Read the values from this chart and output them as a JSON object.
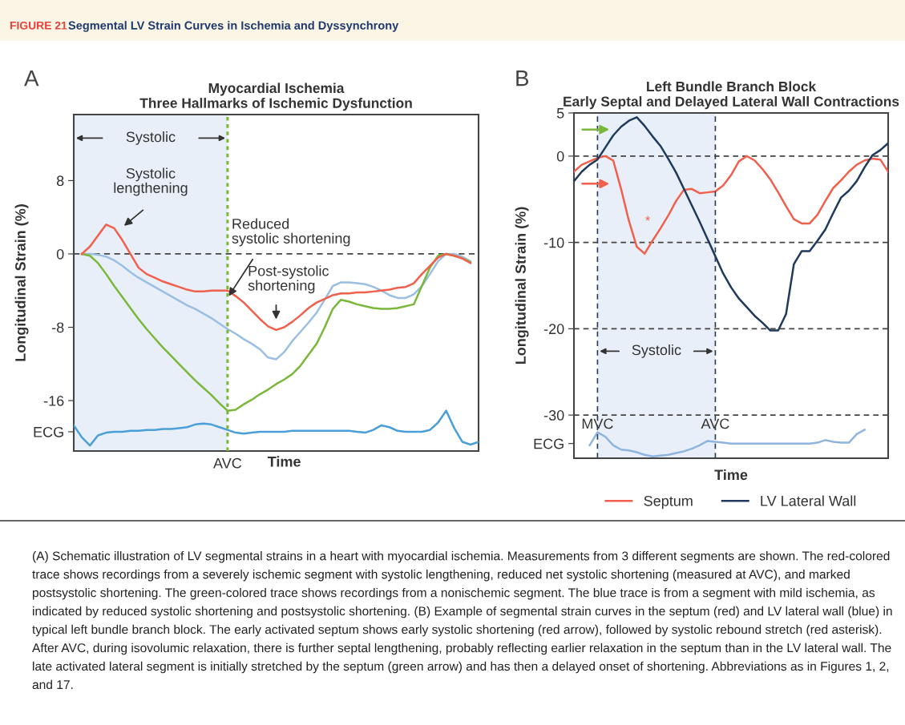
{
  "chart_data": [
    {
      "type": "line",
      "title": "Myocardial Ischemia\nThree Hallmarks of Ischemic Dysfunction",
      "xlabel": "Time",
      "ylabel": "Longitudinal Strain (%)",
      "categories": [
        null,
        null,
        null,
        null,
        null,
        null,
        null,
        null,
        null,
        null,
        null,
        null,
        null,
        null,
        null,
        null,
        null,
        null,
        null,
        "AVC",
        null,
        null,
        null,
        null,
        null,
        null,
        null,
        null,
        null,
        null,
        null,
        null,
        null,
        null,
        null,
        null,
        null,
        null,
        null,
        null,
        null,
        null,
        null,
        null,
        null,
        null,
        null,
        null,
        null,
        null,
        null
      ],
      "series": [
        {
          "color": "#9bbfe3",
          "values": [
            null,
            0,
            0,
            -0.1,
            -0.3,
            -0.7,
            -1.3,
            -2,
            -2.6,
            -3.1,
            -3.6,
            -4.1,
            -4.6,
            -5.1,
            -5.6,
            -6,
            -6.5,
            -7,
            -7.6,
            -8.2,
            -8.7,
            -9.3,
            -9.8,
            -10.4,
            -11.3,
            -11.5,
            -10.7,
            -9.5,
            -8.5,
            -7.5,
            -6.4,
            -5,
            -3.5,
            -3.1,
            -3.1,
            -3.2,
            -3.3,
            -3.6,
            -4,
            -4.5,
            -4.8,
            -4.8,
            -4.4,
            -3.5,
            -2.2,
            -0.8,
            0,
            0,
            -0.3,
            -0.8,
            null
          ]
        },
        {
          "color": "#7ab73a",
          "values": [
            null,
            0,
            -0.2,
            -1,
            -2.2,
            -3.5,
            -4.7,
            -5.9,
            -7.1,
            -8.2,
            -9.2,
            -10.2,
            -11.1,
            -12,
            -12.9,
            -13.8,
            -14.6,
            -15.4,
            -16.3,
            -17.1,
            -17,
            -16.4,
            -15.9,
            -15.3,
            -14.8,
            -14.2,
            -13.7,
            -13.1,
            -12.2,
            -11,
            -9.8,
            -8,
            -6,
            -5,
            -5.2,
            -5.5,
            -5.7,
            -5.9,
            -6,
            -6,
            -5.9,
            -5.7,
            -5.5,
            -3.5,
            -1.5,
            -0.2,
            0,
            -0.2,
            -0.5,
            -0.9,
            null
          ]
        },
        {
          "color": "#f0604d",
          "values": [
            null,
            0,
            0.8,
            2,
            3.2,
            2.8,
            1.5,
            0,
            -1.5,
            -2.2,
            -2.6,
            -3,
            -3.3,
            -3.6,
            -3.9,
            -4.1,
            -4.1,
            -4,
            -4,
            -4,
            -4.6,
            -5.3,
            -6.2,
            -7.1,
            -7.9,
            -8.3,
            -8,
            -7.4,
            -6.7,
            -5.9,
            -5.3,
            -4.9,
            -4.5,
            -4.3,
            -4.3,
            -4.2,
            -4.2,
            -4.1,
            -4,
            -3.9,
            -3.7,
            -3.6,
            -3.2,
            -2.2,
            -1.3,
            -0.4,
            0,
            -0.2,
            -0.5,
            -1,
            null
          ]
        },
        {
          "color": "#4a9fd8",
          "values": [
            -18.7,
            -20,
            -20.9,
            -19.8,
            -19.5,
            -19.4,
            -19.4,
            -19.3,
            -19.3,
            -19.2,
            -19.2,
            -19.1,
            -19.1,
            -19,
            -18.9,
            -18.6,
            -18.5,
            -18.6,
            -18.9,
            -19.2,
            -19.5,
            -19.6,
            -19.5,
            -19.4,
            -19.4,
            -19.4,
            -19.4,
            -19.3,
            -19.3,
            -19.3,
            -19.3,
            -19.3,
            -19.3,
            -19.3,
            -19.3,
            -19.4,
            -19.5,
            -19.2,
            -18.7,
            -18.9,
            -19.3,
            -19.4,
            -19.4,
            -19.4,
            -19.2,
            -18.4,
            -17.1,
            -19,
            -20.5,
            -20.8,
            -20.5
          ]
        }
      ],
      "ylim": [
        -21.5,
        15.2
      ],
      "yticks": [
        8,
        0,
        -8,
        -16,
        {
          "value": -19.4,
          "label": "ECG"
        }
      ],
      "grid": false,
      "legend": false,
      "ref_lines": [
        {
          "axis": "y",
          "value": 0,
          "color": "#444444",
          "line_style": "dashed"
        },
        {
          "axis": "x",
          "value": "AVC",
          "color": "#7ab73a",
          "line_style": "dotted"
        }
      ],
      "annotations": [
        "FIGURE 21",
        "Segmental LV Strain Curves in Ischemia and Dyssynchrony",
        "A",
        "Systolic lengthening",
        "Reduced systolic shortening",
        "Post-systolic shortening",
        "(A) Schematic illustration of LV segmental strains in a heart with myocardial ischemia. Measurements from 3 different segments are shown. The red-colored trace shows recordings from a severely ischemic segment with systolic lengthening, reduced net systolic shortening (measured at AVC), and marked postsystolic shortening. The green-colored trace shows recordings from a nonischemic segment. The blue trace is from a segment with mild ischemia, as indicated by reduced systolic shortening and postsystolic shortening. (B) Example of segmental strain curves in the septum (red) and LV lateral wall (blue) in typical left bundle branch block. The early activated septum shows early systolic shortening (red arrow), followed by systolic rebound stretch (red asterisk). After AVC, during isovolumic relaxation, there is further septal lengthening, probably reflecting earlier relaxation in the septum than in the LV lateral wall. The late activated lateral segment is initially stretched by the septum (green arrow) and has then a delayed onset of shortening. Abbreviations as in Figures 1, 2, and 17.",
        "Systolic"
      ]
    },
    {
      "type": "line",
      "title": "Left Bundle Branch Block\nEarly Septal and Delayed Lateral Wall Contractions",
      "xlabel": "Time",
      "ylabel": "Longitudinal Strain (%)",
      "categories": [
        null,
        null,
        null,
        "MVC",
        null,
        null,
        null,
        null,
        null,
        null,
        null,
        null,
        null,
        null,
        null,
        null,
        null,
        null,
        "AVC",
        null,
        null,
        null,
        null,
        null,
        null,
        null,
        null,
        null,
        null,
        null,
        null,
        null,
        null,
        null,
        null,
        null,
        null,
        null,
        null,
        null,
        null
      ],
      "series": [
        {
          "name": "Septum",
          "color": "#f0604d",
          "values": [
            -1.8,
            -1,
            -0.6,
            -0.2,
            0,
            -0.5,
            -3.8,
            -7.5,
            -10.5,
            -11.3,
            -9.8,
            -8.4,
            -6.9,
            -5.2,
            -3.9,
            -3.8,
            -4.3,
            -4.2,
            -4.1,
            -3.4,
            -2.2,
            -0.6,
            0,
            -0.5,
            -1.5,
            -2.7,
            -4.2,
            -5.8,
            -7.3,
            -7.8,
            -7.8,
            -6.8,
            -5.2,
            -3.7,
            -2.8,
            -1.8,
            -1,
            -0.5,
            -0.3,
            -0.4,
            -1.8
          ]
        },
        {
          "name": "LV Lateral Wall",
          "color": "#1f3a5c",
          "values": [
            -2.9,
            -1.8,
            -1,
            -0.4,
            1,
            2.4,
            3.4,
            4.1,
            4.5,
            3.5,
            2.3,
            1.2,
            -0.3,
            -1.9,
            -3.8,
            -5.7,
            -7.6,
            -9.6,
            -11.6,
            -13.6,
            -15.2,
            -16.5,
            -17.5,
            -18.5,
            -19.3,
            -20.2,
            -20.2,
            -18.3,
            -12.5,
            -11,
            -11,
            -9.8,
            -8.5,
            -6.6,
            -4.8,
            -4,
            -2.9,
            -1.3,
            0.1,
            0.7,
            1.5
          ]
        },
        {
          "color": "#8fb4dd",
          "values": [
            null,
            null,
            -33.5,
            -32,
            -32.5,
            -33.5,
            -34,
            -34.1,
            -34.3,
            -34.6,
            -34.8,
            -34.7,
            -34.6,
            -34.4,
            -34.2,
            -33.9,
            -33.5,
            -33,
            -33.1,
            -33.2,
            -33.3,
            -33.3,
            -33.3,
            -33.3,
            -33.3,
            -33.3,
            -33.3,
            -33.3,
            -33.3,
            -33.3,
            -33.3,
            -33.2,
            -32.9,
            -33.1,
            -33.2,
            -33.2,
            -32.2,
            -31.7,
            null,
            null,
            null
          ]
        }
      ],
      "ylim": [
        -35,
        5
      ],
      "yticks": [
        5,
        0,
        -10,
        -20,
        -30,
        {
          "value": -33.3,
          "label": "ECG"
        }
      ],
      "grid": "y",
      "legend": "bottom",
      "ref_lines": [
        {
          "axis": "x",
          "value": "MVC",
          "color": "#2b3f5c",
          "line_style": "dashed"
        },
        {
          "axis": "x",
          "value": "AVC",
          "color": "#2b3f5c",
          "line_style": "dashed"
        }
      ],
      "bands": [
        {
          "axis": "x",
          "from": "MVC",
          "to": "AVC",
          "label": "Systolic",
          "color": "#e8eff8"
        }
      ],
      "annotations": [
        "B",
        "*"
      ]
    }
  ]
}
